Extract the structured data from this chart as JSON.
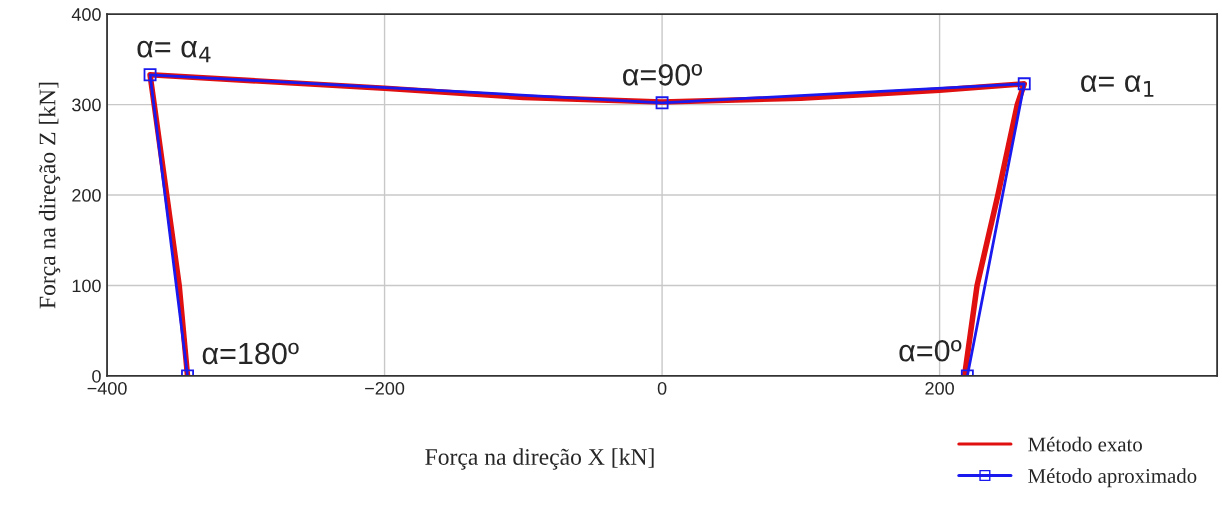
{
  "chart_data": {
    "type": "line",
    "xlabel": "Força na direção X [kN]",
    "ylabel": "Força na direção Z [kN]",
    "xlim": [
      -400,
      400
    ],
    "xticks": [
      -400,
      -200,
      0,
      200
    ],
    "ylim": [
      0,
      400
    ],
    "yticks": [
      0,
      100,
      200,
      300,
      400
    ],
    "grid": true,
    "legend": "bottom right",
    "series": [
      {
        "name": "Método exato",
        "color": "#e01010",
        "marker": "none",
        "x": [
          218,
          227,
          242,
          256,
          261,
          200,
          100,
          0,
          -100,
          -200,
          -369,
          -366,
          -357,
          -348,
          -342
        ],
        "values": [
          0,
          100,
          200,
          300,
          323,
          316,
          307,
          303,
          308,
          318,
          333,
          300,
          200,
          100,
          0
        ]
      },
      {
        "name": "Método aproximado",
        "color": "#1a1aee",
        "marker": "square",
        "x": [
          220,
          261,
          0,
          -369,
          -342
        ],
        "values": [
          0,
          323,
          302,
          333,
          0
        ]
      }
    ],
    "annotations": [
      {
        "text": "α=0º",
        "x": 220,
        "y": 0
      },
      {
        "text": "α= α$_{1}$",
        "x": 261,
        "y": 323
      },
      {
        "text": "α=90º",
        "x": 0,
        "y": 302
      },
      {
        "text": "α= α$_{4}$",
        "x": -369,
        "y": 333
      },
      {
        "text": "α=180º",
        "x": -342,
        "y": 0
      }
    ]
  }
}
